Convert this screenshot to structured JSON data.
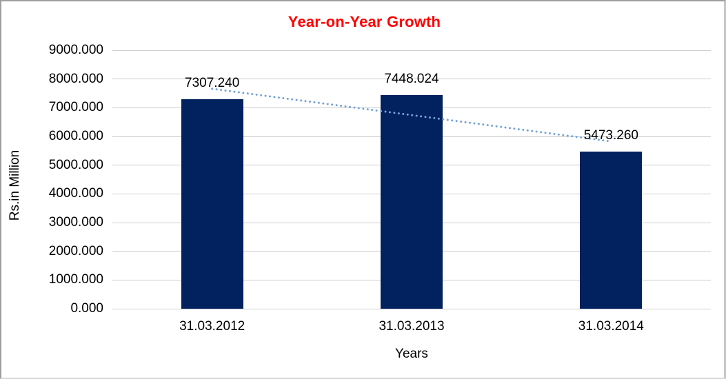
{
  "chart_data": {
    "type": "bar",
    "title": "Year-on-Year Growth",
    "title_color": "#ff0000",
    "xlabel": "Years",
    "ylabel": "Rs.in Million",
    "categories": [
      "31.03.2012",
      "31.03.2013",
      "31.03.2014"
    ],
    "values": [
      7307.24,
      7448.024,
      5473.26
    ],
    "value_labels": [
      "7307.240",
      "7448.024",
      "5473.260"
    ],
    "ylim": [
      0,
      9000
    ],
    "ytick_step": 1000,
    "ytick_labels": [
      "0.000",
      "1000.000",
      "2000.000",
      "3000.000",
      "4000.000",
      "5000.000",
      "6000.000",
      "7000.000",
      "8000.000",
      "9000.000"
    ],
    "grid": "horizontal",
    "legend": "none",
    "bar_color": "#02215f",
    "gridline_color": "#cccccc",
    "trendline": {
      "type": "linear",
      "style": "dotted",
      "color": "#76a3d6",
      "start_value": 7659.8,
      "end_value": 5825.9
    }
  }
}
